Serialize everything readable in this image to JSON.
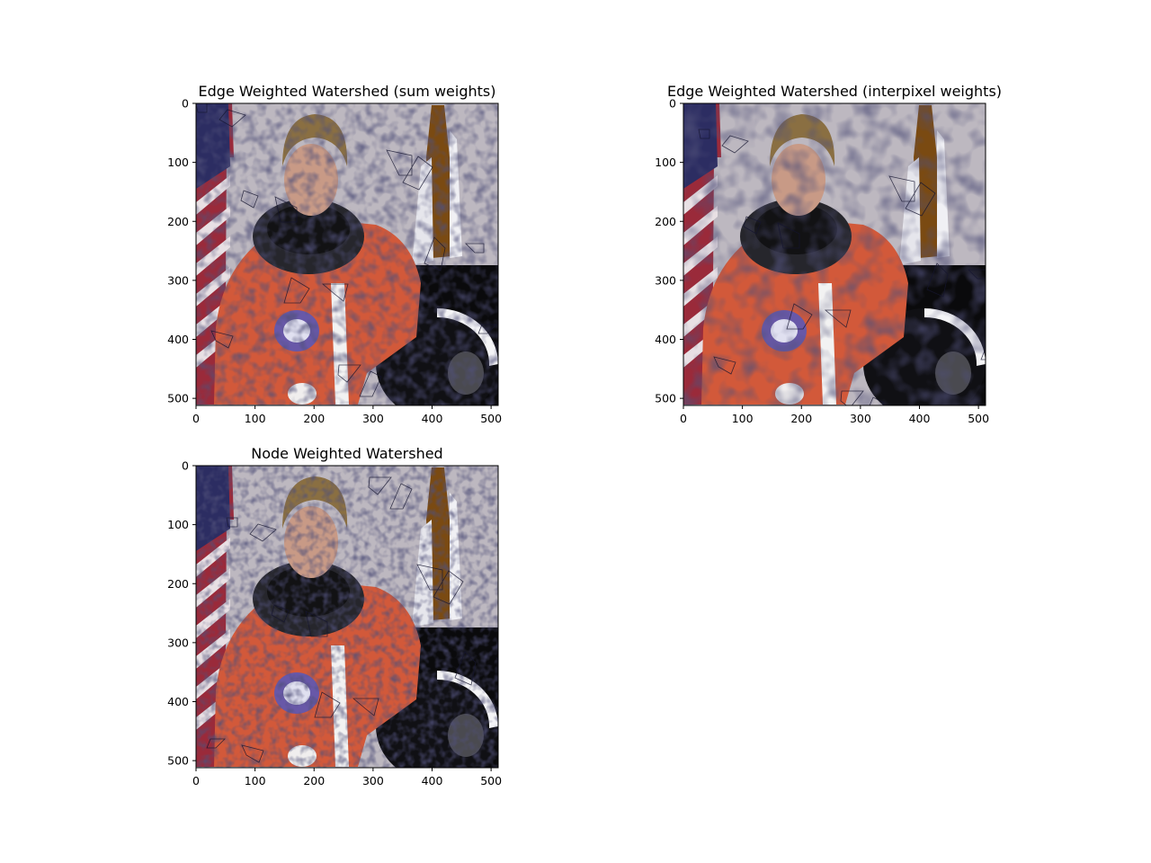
{
  "figure": {
    "background": "#ffffff",
    "frame_color": "#000000",
    "boundary_color": "#151530"
  },
  "chart_data": [
    {
      "type": "image",
      "title": "Edge Weighted Watershed (sum weights)",
      "xticks": [
        0,
        100,
        200,
        300,
        400,
        500
      ],
      "yticks": [
        0,
        100,
        200,
        300,
        400,
        500
      ],
      "xlim": [
        0,
        512
      ],
      "ylim": [
        512,
        0
      ],
      "image_subject": "segmented-astronaut-photo"
    },
    {
      "type": "image",
      "title": "Edge Weighted Watershed (interpixel weights)",
      "xticks": [
        0,
        100,
        200,
        300,
        400,
        500
      ],
      "yticks": [
        0,
        100,
        200,
        300,
        400,
        500
      ],
      "xlim": [
        0,
        512
      ],
      "ylim": [
        512,
        0
      ],
      "image_subject": "segmented-astronaut-photo"
    },
    {
      "type": "image",
      "title": "Node Weighted Watershed",
      "xticks": [
        0,
        100,
        200,
        300,
        400,
        500
      ],
      "yticks": [
        0,
        100,
        200,
        300,
        400,
        500
      ],
      "xlim": [
        0,
        512
      ],
      "ylim": [
        512,
        0
      ],
      "image_subject": "segmented-astronaut-photo"
    }
  ]
}
